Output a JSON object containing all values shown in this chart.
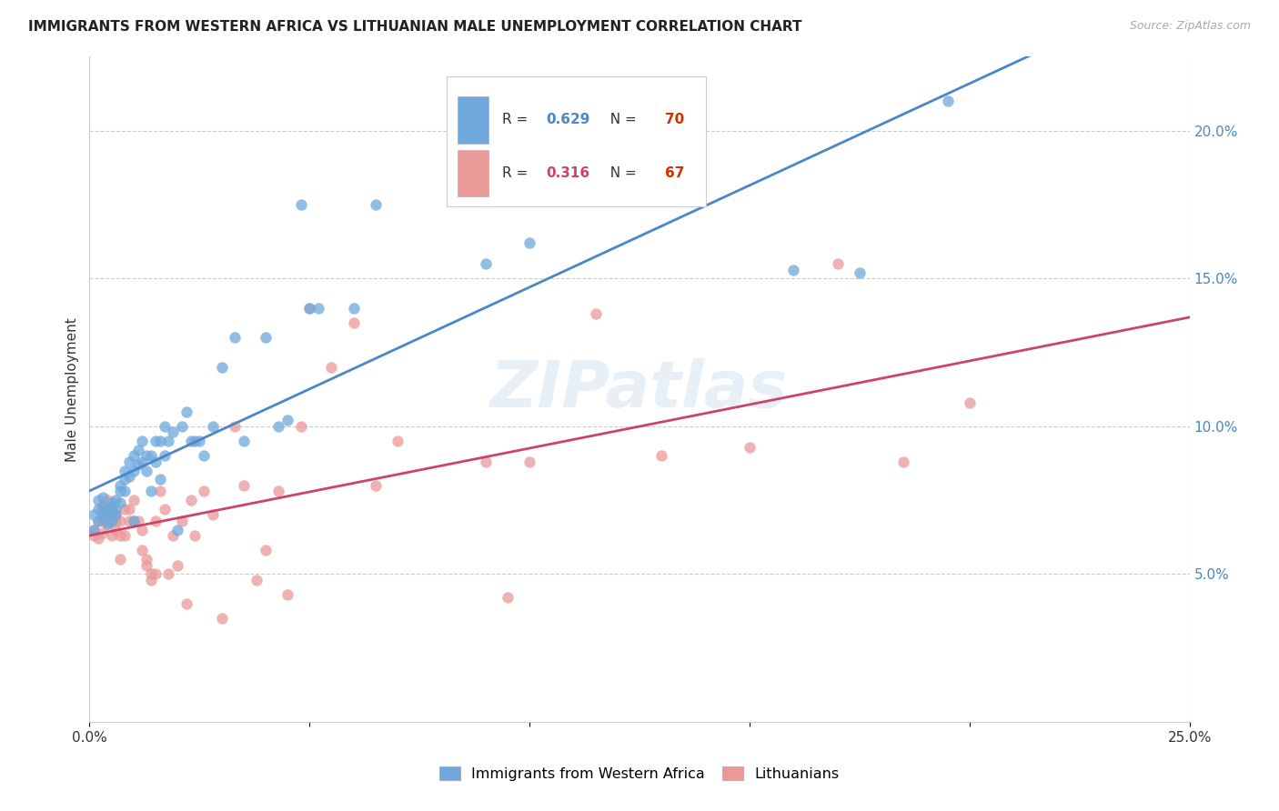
{
  "title": "IMMIGRANTS FROM WESTERN AFRICA VS LITHUANIAN MALE UNEMPLOYMENT CORRELATION CHART",
  "source_text": "Source: ZipAtlas.com",
  "ylabel": "Male Unemployment",
  "xlim": [
    0.0,
    0.25
  ],
  "ylim": [
    0.0,
    0.225
  ],
  "xtick_positions": [
    0.0,
    0.05,
    0.1,
    0.15,
    0.2,
    0.25
  ],
  "xticklabels": [
    "0.0%",
    "",
    "",
    "",
    "",
    "25.0%"
  ],
  "ytick_positions": [
    0.05,
    0.1,
    0.15,
    0.2
  ],
  "ytick_labels": [
    "5.0%",
    "10.0%",
    "15.0%",
    "20.0%"
  ],
  "blue_R": "0.629",
  "blue_N": "70",
  "pink_R": "0.316",
  "pink_N": "67",
  "blue_color": "#6fa8dc",
  "pink_color": "#ea9999",
  "blue_line_color": "#4a86c8",
  "pink_line_color": "#cc4466",
  "watermark": "ZIPatlas",
  "legend_blue_label": "Immigrants from Western Africa",
  "legend_pink_label": "Lithuanians",
  "blue_x": [
    0.001,
    0.001,
    0.002,
    0.002,
    0.002,
    0.003,
    0.003,
    0.003,
    0.003,
    0.004,
    0.004,
    0.004,
    0.005,
    0.005,
    0.005,
    0.005,
    0.006,
    0.006,
    0.006,
    0.007,
    0.007,
    0.007,
    0.008,
    0.008,
    0.008,
    0.009,
    0.009,
    0.01,
    0.01,
    0.01,
    0.011,
    0.011,
    0.012,
    0.012,
    0.013,
    0.013,
    0.014,
    0.014,
    0.015,
    0.015,
    0.016,
    0.016,
    0.017,
    0.017,
    0.018,
    0.019,
    0.02,
    0.021,
    0.022,
    0.023,
    0.024,
    0.025,
    0.026,
    0.028,
    0.03,
    0.033,
    0.035,
    0.04,
    0.043,
    0.045,
    0.048,
    0.05,
    0.052,
    0.06,
    0.065,
    0.09,
    0.1,
    0.16,
    0.175,
    0.195
  ],
  "blue_y": [
    0.065,
    0.07,
    0.072,
    0.068,
    0.075,
    0.073,
    0.071,
    0.069,
    0.076,
    0.07,
    0.067,
    0.072,
    0.071,
    0.074,
    0.068,
    0.073,
    0.075,
    0.072,
    0.07,
    0.08,
    0.078,
    0.074,
    0.085,
    0.082,
    0.078,
    0.083,
    0.088,
    0.09,
    0.085,
    0.068,
    0.087,
    0.092,
    0.088,
    0.095,
    0.09,
    0.085,
    0.09,
    0.078,
    0.095,
    0.088,
    0.095,
    0.082,
    0.1,
    0.09,
    0.095,
    0.098,
    0.065,
    0.1,
    0.105,
    0.095,
    0.095,
    0.095,
    0.09,
    0.1,
    0.12,
    0.13,
    0.095,
    0.13,
    0.1,
    0.102,
    0.175,
    0.14,
    0.14,
    0.14,
    0.175,
    0.155,
    0.162,
    0.153,
    0.152,
    0.21
  ],
  "pink_x": [
    0.001,
    0.001,
    0.002,
    0.002,
    0.003,
    0.003,
    0.003,
    0.004,
    0.004,
    0.004,
    0.005,
    0.005,
    0.005,
    0.006,
    0.006,
    0.006,
    0.007,
    0.007,
    0.007,
    0.008,
    0.008,
    0.009,
    0.009,
    0.01,
    0.01,
    0.011,
    0.012,
    0.012,
    0.013,
    0.013,
    0.014,
    0.014,
    0.015,
    0.015,
    0.016,
    0.017,
    0.018,
    0.019,
    0.02,
    0.021,
    0.022,
    0.023,
    0.024,
    0.026,
    0.028,
    0.03,
    0.033,
    0.035,
    0.038,
    0.04,
    0.043,
    0.045,
    0.048,
    0.05,
    0.055,
    0.06,
    0.065,
    0.07,
    0.09,
    0.095,
    0.1,
    0.115,
    0.13,
    0.15,
    0.17,
    0.185,
    0.2
  ],
  "pink_y": [
    0.065,
    0.063,
    0.062,
    0.068,
    0.064,
    0.068,
    0.072,
    0.067,
    0.072,
    0.075,
    0.071,
    0.068,
    0.063,
    0.07,
    0.065,
    0.068,
    0.063,
    0.055,
    0.068,
    0.072,
    0.063,
    0.068,
    0.072,
    0.075,
    0.068,
    0.068,
    0.058,
    0.065,
    0.053,
    0.055,
    0.05,
    0.048,
    0.068,
    0.05,
    0.078,
    0.072,
    0.05,
    0.063,
    0.053,
    0.068,
    0.04,
    0.075,
    0.063,
    0.078,
    0.07,
    0.035,
    0.1,
    0.08,
    0.048,
    0.058,
    0.078,
    0.043,
    0.1,
    0.14,
    0.12,
    0.135,
    0.08,
    0.095,
    0.088,
    0.042,
    0.088,
    0.138,
    0.09,
    0.093,
    0.155,
    0.088,
    0.108
  ]
}
